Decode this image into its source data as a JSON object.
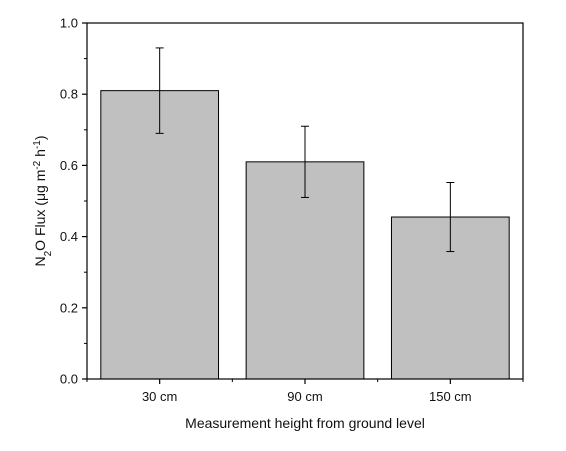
{
  "chart_data": {
    "type": "bar",
    "title": "",
    "xlabel": "Measurement height from ground level",
    "ylabel": {
      "base": "N",
      "sub": "2",
      "mid": "O Flux (μg m",
      "sup1": "-2",
      "mid2": " h",
      "sup2": "-1",
      "end": ")"
    },
    "categories": [
      "30 cm",
      "90 cm",
      "150 cm"
    ],
    "values": [
      0.81,
      0.61,
      0.455
    ],
    "errors": [
      0.12,
      0.1,
      0.097
    ],
    "ylim": [
      0,
      1.0
    ],
    "yticks": [
      "0.0",
      "0.2",
      "0.4",
      "0.6",
      "0.8",
      "1.0"
    ],
    "grid": false,
    "colors": {
      "bar_fill": "#c0c0c0",
      "bar_stroke": "#000000",
      "axis": "#000000"
    }
  }
}
